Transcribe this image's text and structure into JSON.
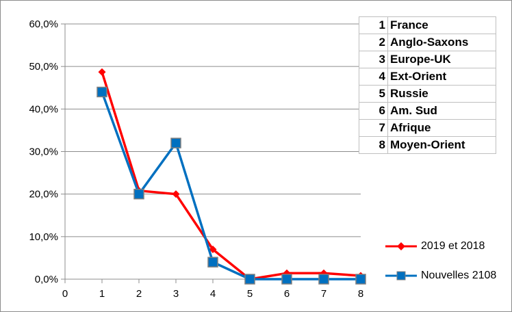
{
  "chart_data": {
    "type": "line",
    "x": [
      1,
      2,
      3,
      4,
      5,
      6,
      7,
      8
    ],
    "xlim": [
      0,
      8
    ],
    "xticks": [
      "0",
      "1",
      "2",
      "3",
      "4",
      "5",
      "6",
      "7",
      "8"
    ],
    "ylim": [
      0,
      0.6
    ],
    "yticks": [
      "0,0%",
      "10,0%",
      "20,0%",
      "30,0%",
      "40,0%",
      "50,0%",
      "60,0%"
    ],
    "grid": "horizontal",
    "legend_position": "bottom-right",
    "series": [
      {
        "name": "2019 et 2018",
        "color": "#ff0000",
        "marker": "diamond",
        "values": [
          0.487,
          0.208,
          0.2,
          0.07,
          0.0,
          0.014,
          0.014,
          0.008
        ]
      },
      {
        "name": "Nouvelles 2108",
        "color": "#0070c0",
        "marker": "square",
        "values": [
          0.44,
          0.2,
          0.32,
          0.04,
          0.0,
          0.0,
          0.0,
          0.0
        ]
      }
    ]
  },
  "region_table": [
    {
      "num": "1",
      "name": "France"
    },
    {
      "num": "2",
      "name": "Anglo-Saxons"
    },
    {
      "num": "3",
      "name": "Europe-UK"
    },
    {
      "num": "4",
      "name": "Ext-Orient"
    },
    {
      "num": "5",
      "name": "Russie"
    },
    {
      "num": "6",
      "name": "Am. Sud"
    },
    {
      "num": "7",
      "name": "Afrique"
    },
    {
      "num": "8",
      "name": "Moyen-Orient"
    }
  ]
}
